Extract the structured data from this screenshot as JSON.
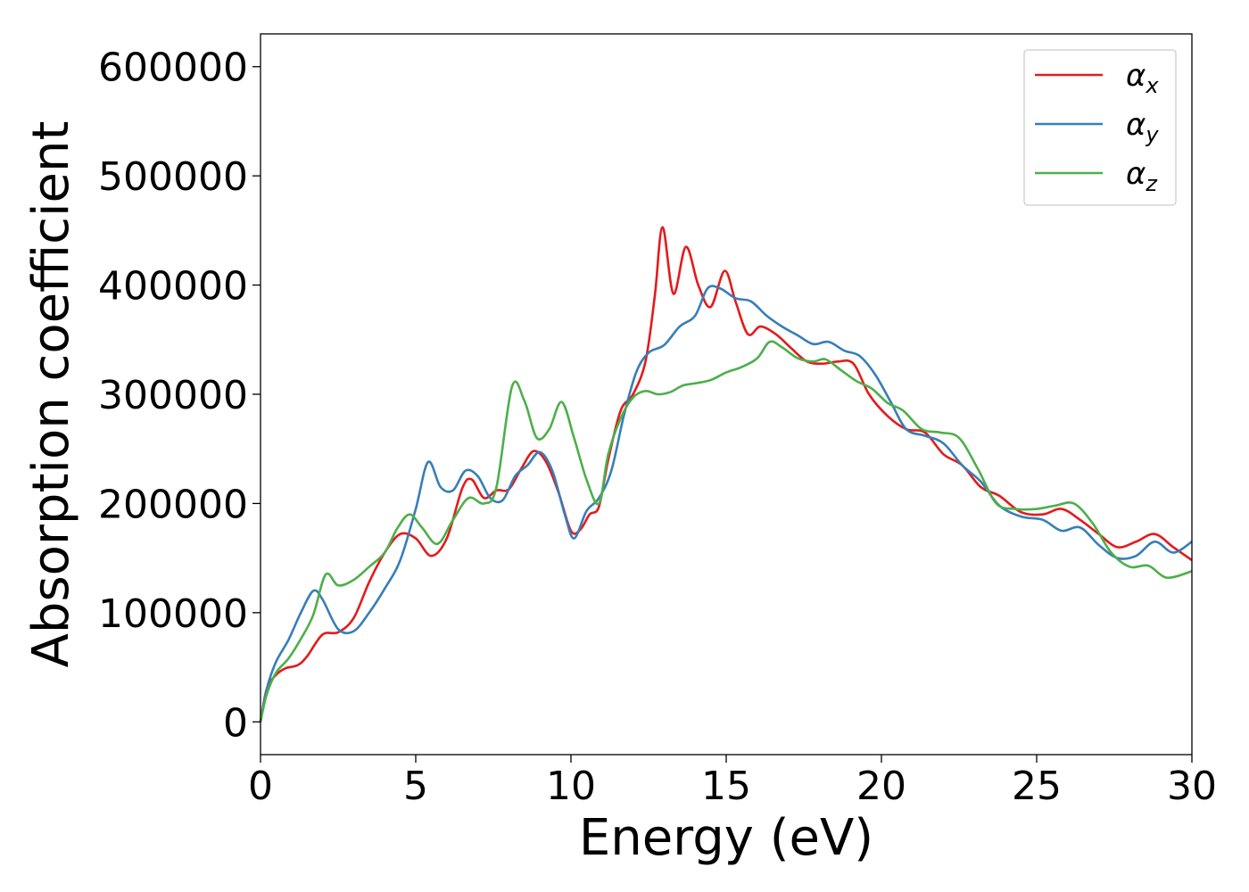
{
  "chart_data": {
    "type": "line",
    "xlabel": "Energy (eV)",
    "ylabel": "Absorption coefficient",
    "xlim": [
      0,
      30
    ],
    "ylim": [
      -30000,
      630000
    ],
    "xticks": [
      "0",
      "5",
      "10",
      "15",
      "20",
      "25",
      "30"
    ],
    "yticks": [
      "0",
      "100000",
      "200000",
      "300000",
      "400000",
      "500000",
      "600000"
    ],
    "grid": false,
    "legend_position": "top-right",
    "series": [
      {
        "name": "α_x",
        "legend_base": "α",
        "legend_sub": "x",
        "color": "#e41a1c",
        "x": [
          0,
          0.2,
          0.5,
          0.8,
          1.2,
          1.5,
          2.0,
          2.5,
          3.0,
          3.5,
          4.0,
          4.5,
          5.0,
          5.5,
          6.0,
          6.5,
          6.8,
          7.2,
          7.6,
          8.0,
          8.4,
          8.8,
          9.2,
          9.6,
          10.0,
          10.3,
          10.6,
          10.9,
          11.2,
          11.6,
          12.0,
          12.4,
          12.7,
          12.95,
          13.3,
          13.7,
          14.1,
          14.5,
          14.95,
          15.3,
          15.7,
          16.1,
          16.6,
          17.1,
          17.6,
          18.1,
          18.6,
          19.1,
          19.6,
          20.2,
          20.8,
          21.4,
          22.0,
          22.6,
          23.2,
          23.8,
          24.5,
          25.2,
          25.8,
          26.4,
          27.0,
          27.6,
          28.2,
          28.8,
          29.4,
          30.0
        ],
        "y": [
          0,
          30000,
          43000,
          49000,
          52000,
          60000,
          80000,
          82000,
          95000,
          128000,
          155000,
          172000,
          168000,
          152000,
          168000,
          214000,
          222000,
          205000,
          212000,
          213000,
          232000,
          248000,
          238000,
          210000,
          175000,
          176000,
          190000,
          197000,
          240000,
          285000,
          300000,
          330000,
          390000,
          453000,
          392000,
          435000,
          400000,
          380000,
          413000,
          385000,
          355000,
          362000,
          355000,
          342000,
          330000,
          328000,
          330000,
          328000,
          300000,
          280000,
          268000,
          265000,
          245000,
          235000,
          215000,
          207000,
          192000,
          190000,
          195000,
          185000,
          172000,
          160000,
          165000,
          172000,
          160000,
          148000
        ]
      },
      {
        "name": "α_y",
        "legend_base": "α",
        "legend_sub": "y",
        "color": "#377eb8",
        "x": [
          0,
          0.2,
          0.5,
          0.9,
          1.3,
          1.7,
          2.0,
          2.5,
          3.0,
          3.5,
          4.0,
          4.5,
          5.0,
          5.4,
          5.8,
          6.2,
          6.6,
          7.0,
          7.4,
          7.8,
          8.2,
          8.6,
          9.0,
          9.4,
          9.8,
          10.1,
          10.5,
          10.9,
          11.3,
          11.7,
          12.1,
          12.5,
          13.0,
          13.5,
          14.0,
          14.4,
          14.8,
          15.3,
          15.8,
          16.3,
          16.8,
          17.3,
          17.8,
          18.3,
          18.8,
          19.3,
          19.8,
          20.3,
          20.8,
          21.4,
          22.0,
          22.6,
          23.2,
          23.8,
          24.5,
          25.2,
          25.8,
          26.4,
          27.0,
          27.6,
          28.2,
          28.8,
          29.4,
          30.0
        ],
        "y": [
          0,
          30000,
          55000,
          75000,
          100000,
          120000,
          112000,
          85000,
          83000,
          100000,
          122000,
          148000,
          195000,
          238000,
          215000,
          212000,
          230000,
          225000,
          205000,
          203000,
          225000,
          235000,
          247000,
          230000,
          190000,
          168000,
          193000,
          205000,
          230000,
          280000,
          320000,
          338000,
          345000,
          362000,
          372000,
          397000,
          397000,
          388000,
          385000,
          372000,
          362000,
          354000,
          346000,
          348000,
          340000,
          335000,
          318000,
          293000,
          268000,
          262000,
          255000,
          235000,
          220000,
          198000,
          188000,
          185000,
          175000,
          178000,
          162000,
          150000,
          152000,
          165000,
          155000,
          165000
        ]
      },
      {
        "name": "α_z",
        "legend_base": "α",
        "legend_sub": "z",
        "color": "#4daf4a",
        "x": [
          0,
          0.2,
          0.5,
          0.9,
          1.3,
          1.7,
          2.1,
          2.5,
          3.0,
          3.5,
          4.0,
          4.4,
          4.8,
          5.2,
          5.7,
          6.2,
          6.7,
          7.2,
          7.6,
          8.1,
          8.5,
          8.9,
          9.3,
          9.7,
          10.1,
          10.5,
          10.9,
          11.2,
          11.6,
          12.0,
          12.4,
          12.8,
          13.2,
          13.6,
          14.0,
          14.5,
          15.0,
          15.5,
          16.0,
          16.4,
          16.8,
          17.3,
          17.8,
          18.2,
          18.7,
          19.2,
          19.7,
          20.2,
          20.7,
          21.3,
          21.9,
          22.5,
          23.1,
          23.7,
          24.3,
          25.0,
          25.6,
          26.2,
          26.8,
          27.4,
          28.0,
          28.6,
          29.2,
          30.0
        ],
        "y": [
          0,
          25000,
          45000,
          58000,
          76000,
          98000,
          135000,
          125000,
          130000,
          142000,
          155000,
          177000,
          190000,
          178000,
          163000,
          185000,
          205000,
          200000,
          215000,
          307000,
          294000,
          260000,
          268000,
          293000,
          260000,
          222000,
          200000,
          245000,
          278000,
          297000,
          303000,
          300000,
          302000,
          308000,
          310000,
          313000,
          320000,
          325000,
          333000,
          348000,
          343000,
          333000,
          330000,
          332000,
          322000,
          312000,
          305000,
          292000,
          285000,
          268000,
          265000,
          260000,
          232000,
          200000,
          195000,
          195000,
          198000,
          200000,
          182000,
          155000,
          142000,
          143000,
          132000,
          138000
        ]
      }
    ]
  }
}
